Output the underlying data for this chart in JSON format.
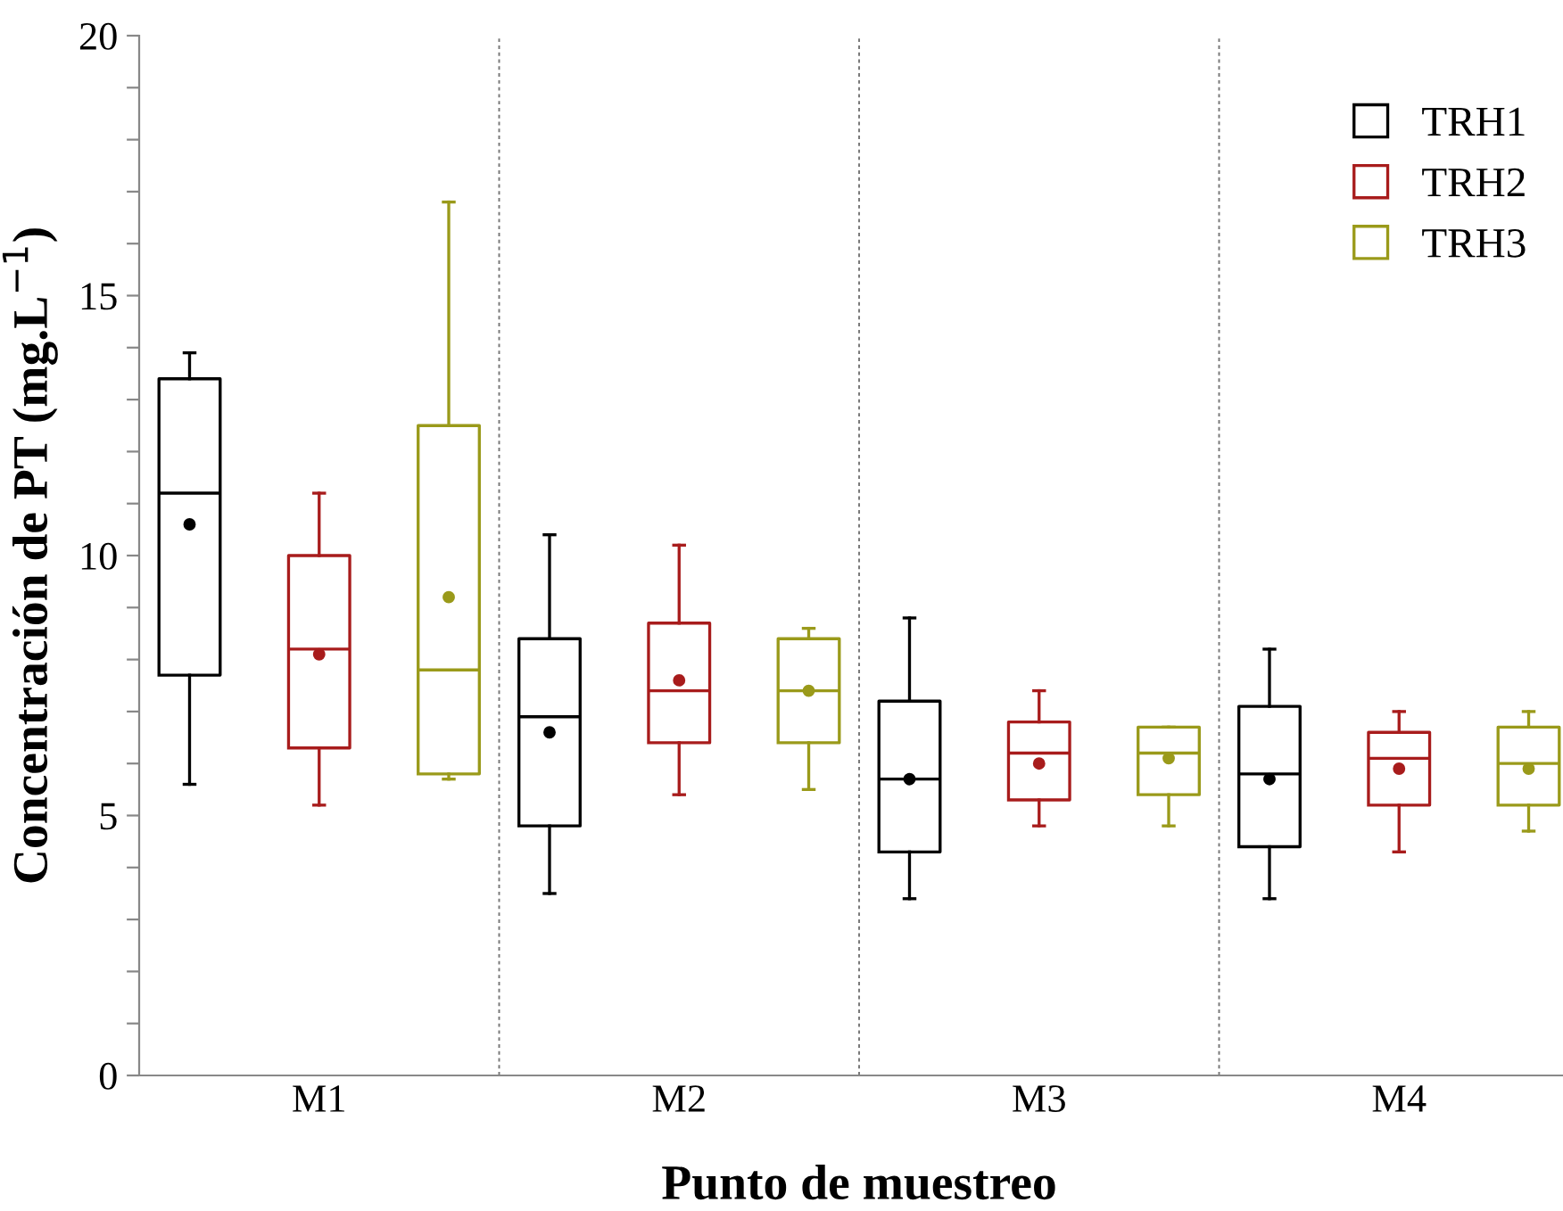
{
  "chart_data": {
    "type": "box",
    "xlabel": "Punto de muestreo",
    "ylabel": "Concentración de PT (mg.L$^{−1}$)",
    "categories": [
      "M1",
      "M2",
      "M3",
      "M4"
    ],
    "ylim": [
      0,
      20
    ],
    "yticks": [
      0,
      {
        "value": 1,
        "label": null
      },
      {
        "value": 2,
        "label": null
      },
      {
        "value": 3,
        "label": null
      },
      {
        "value": 4,
        "label": null
      },
      5,
      {
        "value": 6,
        "label": null
      },
      {
        "value": 7,
        "label": null
      },
      {
        "value": 8,
        "label": null
      },
      {
        "value": 9,
        "label": null
      },
      10,
      {
        "value": 11,
        "label": null
      },
      {
        "value": 12,
        "label": null
      },
      {
        "value": 13,
        "label": null
      },
      {
        "value": 14,
        "label": null
      },
      15,
      {
        "value": 16,
        "label": null
      },
      {
        "value": 17,
        "label": null
      },
      {
        "value": 18,
        "label": null
      },
      {
        "value": 19,
        "label": null
      },
      20
    ],
    "legend": "top right",
    "grid": false,
    "series": [
      {
        "name": "TRH1",
        "color": "#000000",
        "boxes": [
          {
            "low": 5.6,
            "q1": 7.7,
            "median": 11.2,
            "q3": 13.4,
            "high": 13.9,
            "mean": 10.6
          },
          {
            "low": 3.5,
            "q1": 4.8,
            "median": 6.9,
            "q3": 8.4,
            "high": 10.4,
            "mean": 6.6
          },
          {
            "low": 3.4,
            "q1": 4.3,
            "median": 5.7,
            "q3": 7.2,
            "high": 8.8,
            "mean": 5.7
          },
          {
            "low": 3.4,
            "q1": 4.4,
            "median": 5.8,
            "q3": 7.1,
            "high": 8.2,
            "mean": 5.7
          }
        ]
      },
      {
        "name": "TRH2",
        "color": "#a81c1c",
        "boxes": [
          {
            "low": 5.2,
            "q1": 6.3,
            "median": 8.2,
            "q3": 10.0,
            "high": 11.2,
            "mean": 8.1
          },
          {
            "low": 5.4,
            "q1": 6.4,
            "median": 7.4,
            "q3": 8.7,
            "high": 10.2,
            "mean": 7.6
          },
          {
            "low": 4.8,
            "q1": 5.3,
            "median": 6.2,
            "q3": 6.8,
            "high": 7.4,
            "mean": 6.0
          },
          {
            "low": 4.3,
            "q1": 5.2,
            "median": 6.1,
            "q3": 6.6,
            "high": 7.0,
            "mean": 5.9
          }
        ]
      },
      {
        "name": "TRH3",
        "color": "#9a9a1a",
        "boxes": [
          {
            "low": 5.7,
            "q1": 5.8,
            "median": 7.8,
            "q3": 12.5,
            "high": 16.8,
            "mean": 9.2
          },
          {
            "low": 5.5,
            "q1": 6.4,
            "median": 7.4,
            "q3": 8.4,
            "high": 8.6,
            "mean": 7.4
          },
          {
            "low": 4.8,
            "q1": 5.4,
            "median": 6.2,
            "q3": 6.7,
            "high": 6.7,
            "mean": 6.1
          },
          {
            "low": 4.7,
            "q1": 5.2,
            "median": 6.0,
            "q3": 6.7,
            "high": 7.0,
            "mean": 5.9
          }
        ]
      }
    ]
  }
}
